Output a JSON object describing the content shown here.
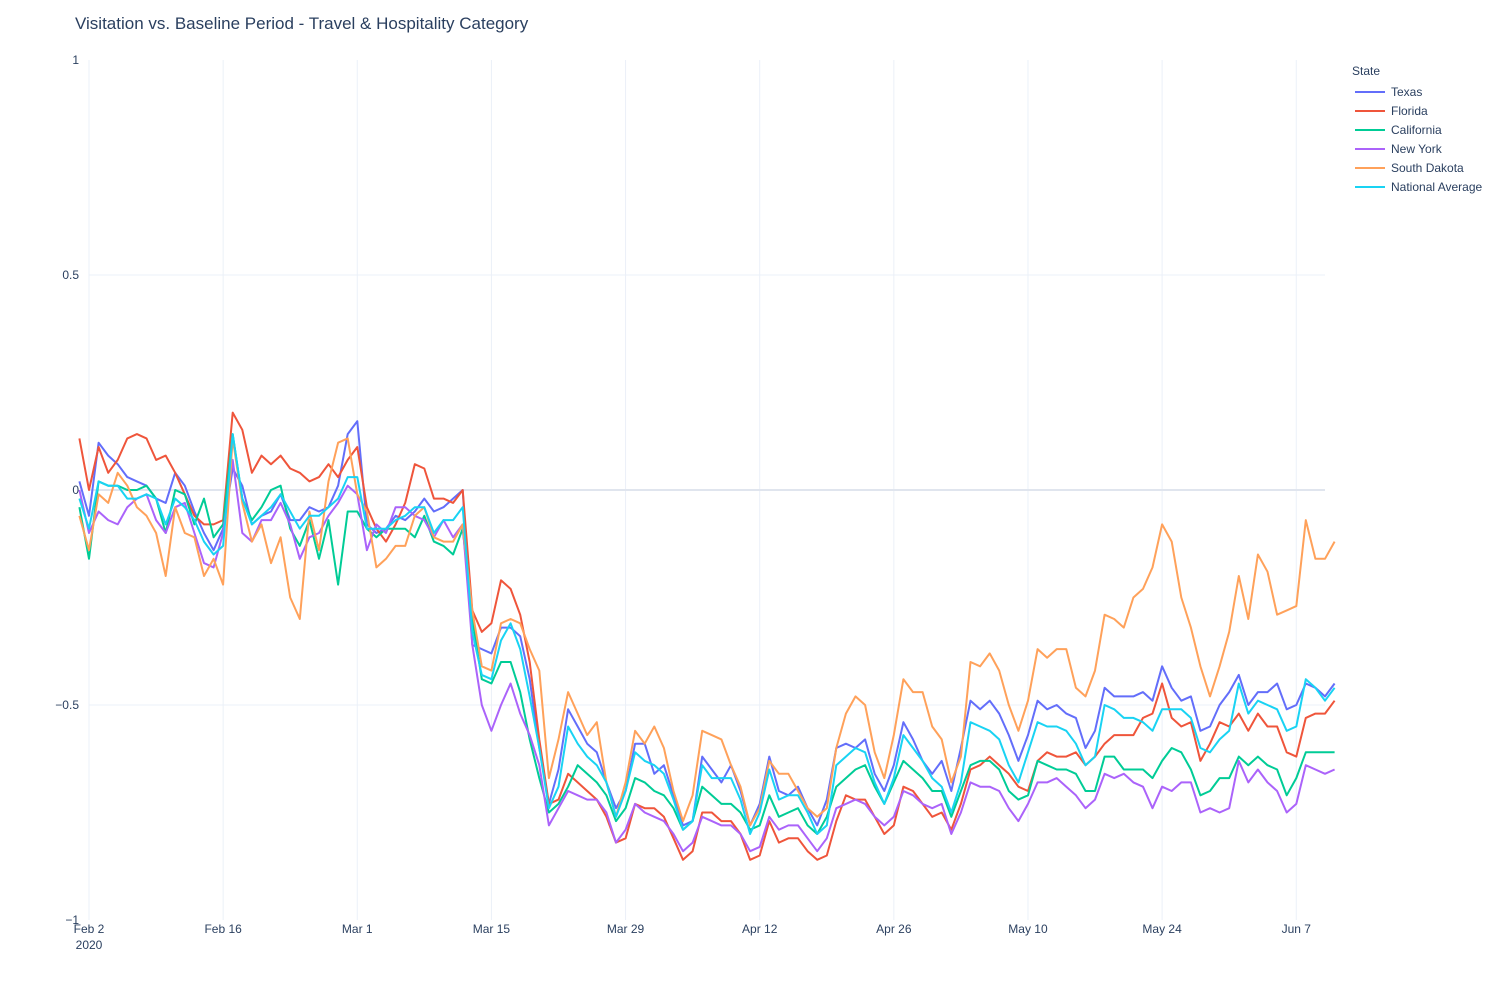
{
  "chart_data": {
    "type": "line",
    "title": "Visitation vs. Baseline Period - Travel & Hospitality Category",
    "xlabel": "",
    "ylabel": "",
    "x_start": "2020-02-01",
    "x_ticks": [
      {
        "date": "2020-02-02",
        "label": "Feb 2",
        "sublabel": "2020"
      },
      {
        "date": "2020-02-16",
        "label": "Feb 16"
      },
      {
        "date": "2020-03-01",
        "label": "Mar 1"
      },
      {
        "date": "2020-03-15",
        "label": "Mar 15"
      },
      {
        "date": "2020-03-29",
        "label": "Mar 29"
      },
      {
        "date": "2020-04-12",
        "label": "Apr 12"
      },
      {
        "date": "2020-04-26",
        "label": "Apr 26"
      },
      {
        "date": "2020-05-10",
        "label": "May 10"
      },
      {
        "date": "2020-05-24",
        "label": "May 24"
      },
      {
        "date": "2020-06-07",
        "label": "Jun 7"
      }
    ],
    "y_ticks": [
      {
        "value": 1,
        "label": "1"
      },
      {
        "value": 0.5,
        "label": "0.5"
      },
      {
        "value": 0,
        "label": "0"
      },
      {
        "value": -0.5,
        "label": "−0.5"
      },
      {
        "value": -1,
        "label": "−1"
      }
    ],
    "ylim": [
      -1,
      1
    ],
    "xlim": [
      "2020-02-02",
      "2020-06-10"
    ],
    "grid": true,
    "legend_placement": "top-right",
    "legend_title": "State",
    "series": [
      {
        "name": "Texas",
        "color": "#636efa",
        "values": [
          0.02,
          -0.06,
          0.11,
          0.08,
          0.06,
          0.03,
          0.02,
          0.01,
          -0.02,
          -0.03,
          0.04,
          0.01,
          -0.05,
          -0.1,
          -0.14,
          -0.09,
          0.05,
          0.01,
          -0.08,
          -0.06,
          -0.05,
          -0.01,
          -0.07,
          -0.07,
          -0.04,
          -0.05,
          -0.04,
          0.01,
          0.13,
          0.16,
          -0.08,
          -0.1,
          -0.09,
          -0.06,
          -0.07,
          -0.05,
          -0.02,
          -0.05,
          -0.04,
          -0.02,
          0.0,
          -0.36,
          -0.37,
          -0.38,
          -0.32,
          -0.32,
          -0.34,
          -0.44,
          -0.6,
          -0.73,
          -0.65,
          -0.51,
          -0.55,
          -0.59,
          -0.61,
          -0.68,
          -0.74,
          -0.7,
          -0.59,
          -0.59,
          -0.66,
          -0.64,
          -0.71,
          -0.78,
          -0.77,
          -0.62,
          -0.65,
          -0.68,
          -0.64,
          -0.7,
          -0.78,
          -0.73,
          -0.62,
          -0.7,
          -0.71,
          -0.69,
          -0.74,
          -0.78,
          -0.72,
          -0.6,
          -0.59,
          -0.6,
          -0.58,
          -0.66,
          -0.7,
          -0.64,
          -0.54,
          -0.58,
          -0.63,
          -0.66,
          -0.63,
          -0.7,
          -0.6,
          -0.49,
          -0.51,
          -0.49,
          -0.52,
          -0.57,
          -0.63,
          -0.57,
          -0.49,
          -0.51,
          -0.5,
          -0.52,
          -0.53,
          -0.6,
          -0.56,
          -0.46,
          -0.48,
          -0.48,
          -0.48,
          -0.47,
          -0.49,
          -0.41,
          -0.46,
          -0.49,
          -0.48,
          -0.56,
          -0.55,
          -0.5,
          -0.47,
          -0.43,
          -0.5,
          -0.47,
          -0.47,
          -0.45,
          -0.51,
          -0.5,
          -0.45,
          -0.46,
          -0.48,
          -0.45
        ]
      },
      {
        "name": "Florida",
        "color": "#ef553b",
        "values": [
          0.12,
          0.0,
          0.1,
          0.04,
          0.07,
          0.12,
          0.13,
          0.12,
          0.07,
          0.08,
          0.04,
          -0.01,
          -0.06,
          -0.08,
          -0.08,
          -0.07,
          0.18,
          0.14,
          0.04,
          0.08,
          0.06,
          0.08,
          0.05,
          0.04,
          0.02,
          0.03,
          0.06,
          0.03,
          0.07,
          0.1,
          -0.04,
          -0.09,
          -0.12,
          -0.08,
          -0.03,
          0.06,
          0.05,
          -0.02,
          -0.02,
          -0.03,
          0.0,
          -0.28,
          -0.33,
          -0.31,
          -0.21,
          -0.23,
          -0.29,
          -0.4,
          -0.58,
          -0.73,
          -0.72,
          -0.66,
          -0.68,
          -0.7,
          -0.72,
          -0.76,
          -0.82,
          -0.81,
          -0.73,
          -0.74,
          -0.74,
          -0.76,
          -0.81,
          -0.86,
          -0.84,
          -0.75,
          -0.75,
          -0.77,
          -0.77,
          -0.8,
          -0.86,
          -0.85,
          -0.77,
          -0.82,
          -0.81,
          -0.81,
          -0.84,
          -0.86,
          -0.85,
          -0.77,
          -0.71,
          -0.72,
          -0.72,
          -0.76,
          -0.8,
          -0.78,
          -0.69,
          -0.7,
          -0.73,
          -0.76,
          -0.75,
          -0.79,
          -0.73,
          -0.65,
          -0.64,
          -0.62,
          -0.64,
          -0.66,
          -0.69,
          -0.7,
          -0.63,
          -0.61,
          -0.62,
          -0.62,
          -0.61,
          -0.64,
          -0.62,
          -0.59,
          -0.57,
          -0.57,
          -0.57,
          -0.53,
          -0.52,
          -0.45,
          -0.53,
          -0.55,
          -0.54,
          -0.63,
          -0.59,
          -0.54,
          -0.55,
          -0.52,
          -0.56,
          -0.52,
          -0.55,
          -0.55,
          -0.61,
          -0.62,
          -0.53,
          -0.52,
          -0.52,
          -0.49
        ]
      },
      {
        "name": "California",
        "color": "#00cc96",
        "values": [
          -0.04,
          -0.16,
          0.02,
          0.01,
          0.01,
          0.0,
          0.0,
          0.01,
          -0.02,
          -0.1,
          0.0,
          -0.01,
          -0.08,
          -0.02,
          -0.11,
          -0.08,
          0.13,
          -0.02,
          -0.07,
          -0.04,
          0.0,
          0.01,
          -0.09,
          -0.13,
          -0.07,
          -0.16,
          -0.07,
          -0.22,
          -0.05,
          -0.05,
          -0.09,
          -0.11,
          -0.09,
          -0.09,
          -0.09,
          -0.11,
          -0.06,
          -0.12,
          -0.13,
          -0.15,
          -0.09,
          -0.3,
          -0.44,
          -0.45,
          -0.4,
          -0.4,
          -0.47,
          -0.58,
          -0.67,
          -0.75,
          -0.73,
          -0.69,
          -0.64,
          -0.66,
          -0.68,
          -0.71,
          -0.77,
          -0.74,
          -0.67,
          -0.68,
          -0.7,
          -0.71,
          -0.74,
          -0.79,
          -0.77,
          -0.69,
          -0.71,
          -0.73,
          -0.73,
          -0.75,
          -0.79,
          -0.78,
          -0.71,
          -0.76,
          -0.75,
          -0.74,
          -0.78,
          -0.8,
          -0.76,
          -0.69,
          -0.67,
          -0.65,
          -0.64,
          -0.69,
          -0.73,
          -0.68,
          -0.63,
          -0.65,
          -0.67,
          -0.7,
          -0.7,
          -0.76,
          -0.7,
          -0.64,
          -0.63,
          -0.63,
          -0.65,
          -0.7,
          -0.72,
          -0.71,
          -0.63,
          -0.64,
          -0.65,
          -0.65,
          -0.66,
          -0.7,
          -0.7,
          -0.62,
          -0.62,
          -0.65,
          -0.65,
          -0.65,
          -0.67,
          -0.63,
          -0.6,
          -0.61,
          -0.65,
          -0.71,
          -0.7,
          -0.67,
          -0.67,
          -0.62,
          -0.64,
          -0.62,
          -0.64,
          -0.65,
          -0.71,
          -0.67,
          -0.61,
          -0.61,
          -0.61,
          -0.61
        ]
      },
      {
        "name": "New York",
        "color": "#ab63fa",
        "values": [
          0.0,
          -0.1,
          -0.05,
          -0.07,
          -0.08,
          -0.04,
          -0.02,
          -0.01,
          -0.07,
          -0.1,
          -0.04,
          -0.03,
          -0.1,
          -0.17,
          -0.18,
          -0.1,
          0.07,
          -0.1,
          -0.12,
          -0.07,
          -0.07,
          -0.03,
          -0.08,
          -0.16,
          -0.11,
          -0.1,
          -0.06,
          -0.03,
          0.01,
          -0.01,
          -0.14,
          -0.08,
          -0.1,
          -0.04,
          -0.04,
          -0.06,
          -0.07,
          -0.11,
          -0.07,
          -0.11,
          -0.08,
          -0.36,
          -0.5,
          -0.56,
          -0.5,
          -0.45,
          -0.52,
          -0.57,
          -0.64,
          -0.78,
          -0.74,
          -0.7,
          -0.71,
          -0.72,
          -0.72,
          -0.75,
          -0.82,
          -0.79,
          -0.73,
          -0.75,
          -0.76,
          -0.77,
          -0.8,
          -0.84,
          -0.82,
          -0.76,
          -0.77,
          -0.78,
          -0.78,
          -0.8,
          -0.84,
          -0.83,
          -0.76,
          -0.79,
          -0.78,
          -0.78,
          -0.81,
          -0.84,
          -0.81,
          -0.74,
          -0.73,
          -0.72,
          -0.73,
          -0.76,
          -0.78,
          -0.76,
          -0.7,
          -0.71,
          -0.73,
          -0.74,
          -0.73,
          -0.8,
          -0.75,
          -0.68,
          -0.69,
          -0.69,
          -0.7,
          -0.74,
          -0.77,
          -0.73,
          -0.68,
          -0.68,
          -0.67,
          -0.69,
          -0.71,
          -0.74,
          -0.72,
          -0.66,
          -0.67,
          -0.66,
          -0.68,
          -0.69,
          -0.74,
          -0.69,
          -0.7,
          -0.68,
          -0.68,
          -0.75,
          -0.74,
          -0.75,
          -0.74,
          -0.63,
          -0.68,
          -0.65,
          -0.68,
          -0.7,
          -0.75,
          -0.73,
          -0.64,
          -0.65,
          -0.66,
          -0.65
        ]
      },
      {
        "name": "South Dakota",
        "color": "#ffa15a",
        "values": [
          -0.06,
          -0.14,
          -0.01,
          -0.03,
          0.04,
          0.01,
          -0.04,
          -0.06,
          -0.1,
          -0.2,
          -0.04,
          -0.1,
          -0.11,
          -0.2,
          -0.16,
          -0.22,
          0.12,
          -0.03,
          -0.12,
          -0.08,
          -0.17,
          -0.11,
          -0.25,
          -0.3,
          -0.05,
          -0.14,
          0.02,
          0.11,
          0.12,
          -0.01,
          -0.05,
          -0.18,
          -0.16,
          -0.13,
          -0.13,
          -0.06,
          -0.04,
          -0.11,
          -0.12,
          -0.12,
          -0.08,
          -0.28,
          -0.41,
          -0.42,
          -0.31,
          -0.3,
          -0.31,
          -0.37,
          -0.42,
          -0.67,
          -0.58,
          -0.47,
          -0.52,
          -0.57,
          -0.54,
          -0.68,
          -0.76,
          -0.68,
          -0.56,
          -0.59,
          -0.55,
          -0.6,
          -0.7,
          -0.77,
          -0.71,
          -0.56,
          -0.57,
          -0.58,
          -0.64,
          -0.69,
          -0.78,
          -0.74,
          -0.63,
          -0.66,
          -0.66,
          -0.7,
          -0.74,
          -0.76,
          -0.74,
          -0.6,
          -0.52,
          -0.48,
          -0.5,
          -0.61,
          -0.67,
          -0.57,
          -0.44,
          -0.47,
          -0.47,
          -0.55,
          -0.58,
          -0.68,
          -0.62,
          -0.4,
          -0.41,
          -0.38,
          -0.42,
          -0.5,
          -0.56,
          -0.49,
          -0.37,
          -0.39,
          -0.37,
          -0.37,
          -0.46,
          -0.48,
          -0.42,
          -0.29,
          -0.3,
          -0.32,
          -0.25,
          -0.23,
          -0.18,
          -0.08,
          -0.12,
          -0.25,
          -0.32,
          -0.41,
          -0.48,
          -0.41,
          -0.33,
          -0.2,
          -0.3,
          -0.15,
          -0.19,
          -0.29,
          -0.28,
          -0.27,
          -0.07,
          -0.16,
          -0.16,
          -0.12
        ]
      },
      {
        "name": "National Average",
        "color": "#19d3f3",
        "values": [
          -0.02,
          -0.09,
          0.02,
          0.01,
          0.01,
          -0.02,
          -0.02,
          -0.01,
          -0.02,
          -0.08,
          -0.02,
          -0.04,
          -0.07,
          -0.12,
          -0.15,
          -0.13,
          0.13,
          -0.02,
          -0.08,
          -0.06,
          -0.04,
          -0.01,
          -0.05,
          -0.09,
          -0.06,
          -0.06,
          -0.04,
          -0.02,
          0.03,
          0.03,
          -0.09,
          -0.09,
          -0.09,
          -0.07,
          -0.06,
          -0.04,
          -0.04,
          -0.1,
          -0.07,
          -0.07,
          -0.04,
          -0.33,
          -0.43,
          -0.44,
          -0.35,
          -0.31,
          -0.37,
          -0.48,
          -0.6,
          -0.74,
          -0.69,
          -0.55,
          -0.59,
          -0.62,
          -0.64,
          -0.68,
          -0.76,
          -0.7,
          -0.61,
          -0.63,
          -0.64,
          -0.66,
          -0.72,
          -0.79,
          -0.77,
          -0.64,
          -0.67,
          -0.67,
          -0.67,
          -0.72,
          -0.8,
          -0.75,
          -0.65,
          -0.72,
          -0.71,
          -0.71,
          -0.75,
          -0.8,
          -0.78,
          -0.64,
          -0.62,
          -0.6,
          -0.61,
          -0.68,
          -0.73,
          -0.67,
          -0.57,
          -0.6,
          -0.63,
          -0.67,
          -0.69,
          -0.75,
          -0.68,
          -0.54,
          -0.55,
          -0.56,
          -0.58,
          -0.64,
          -0.68,
          -0.61,
          -0.54,
          -0.55,
          -0.55,
          -0.56,
          -0.59,
          -0.64,
          -0.62,
          -0.5,
          -0.51,
          -0.53,
          -0.53,
          -0.54,
          -0.56,
          -0.51,
          -0.51,
          -0.51,
          -0.53,
          -0.6,
          -0.61,
          -0.58,
          -0.56,
          -0.45,
          -0.52,
          -0.49,
          -0.5,
          -0.51,
          -0.56,
          -0.55,
          -0.44,
          -0.46,
          -0.49,
          -0.46
        ]
      }
    ]
  }
}
